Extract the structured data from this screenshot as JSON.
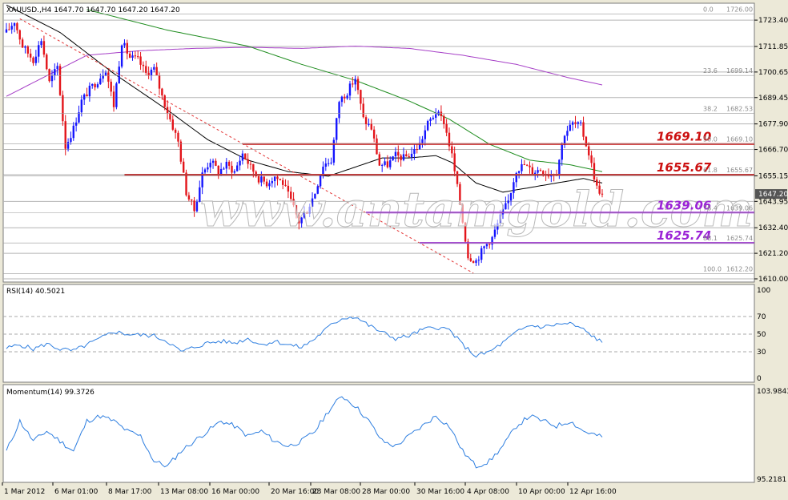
{
  "chart_data": {
    "type": "candlestick",
    "symbol_header": "XAUUSD.,H4  1647.70 1647.70 1647.20 1647.20",
    "watermark": "www.antamgold.com",
    "colors": {
      "bull": "#1515ff",
      "bear": "#e3141a",
      "ma_fast": "#000000",
      "ma_mid": "#1e8c1e",
      "ma_slow": "#a63fc7",
      "resistance": "#cc1111",
      "support": "#9b24d6",
      "trend": "#e33333",
      "indicator": "#2f7fe0",
      "grid": "#b4b4b4",
      "background": "#ece9d8"
    },
    "price_axis": {
      "min": 1610.0,
      "max": 1728.0,
      "ticks": [
        "1723.40",
        "1711.85",
        "1700.65",
        "1689.45",
        "1677.90",
        "1666.70",
        "1655.15",
        "1643.95",
        "1632.40",
        "1621.20",
        "1610.00"
      ],
      "current_price": "1647.20"
    },
    "time_axis": {
      "labels": [
        "1 Mar 2012",
        "6 Mar 01:00",
        "8 Mar 17:00",
        "13 Mar 08:00",
        "16 Mar 00:00",
        "20 Mar 16:00",
        "23 Mar 08:00",
        "28 Mar 00:00",
        "30 Mar 16:00",
        "4 Apr 08:00",
        "10 Apr 00:00",
        "12 Apr 16:00"
      ]
    },
    "fibonacci": [
      {
        "pct": "0.0",
        "price": "1726.00"
      },
      {
        "pct": "23.6",
        "price": "1699.14"
      },
      {
        "pct": "38.2",
        "price": "1682.53"
      },
      {
        "pct": "50.0",
        "price": "1669.10"
      },
      {
        "pct": "61.8",
        "price": "1655.67"
      },
      {
        "pct": "76.4",
        "price": "1639.06"
      },
      {
        "pct": "88.1",
        "price": "1625.74"
      },
      {
        "pct": "100.0",
        "price": "1612.20"
      }
    ],
    "levels": [
      {
        "label": "1669.10",
        "price": 1669.1,
        "kind": "resistance",
        "from_time": 88
      },
      {
        "label": "1655.67",
        "price": 1655.67,
        "kind": "resistance",
        "from_time": 44
      },
      {
        "label": "1639.06",
        "price": 1639.06,
        "kind": "support",
        "from_time": 134
      },
      {
        "label": "1625.74",
        "price": 1625.74,
        "kind": "support",
        "from_time": 154
      }
    ],
    "trendline": {
      "t0": 5,
      "p0": 1724.0,
      "t1": 174,
      "p1": 1612.5
    },
    "price_anchors": [
      [
        0,
        1718
      ],
      [
        3,
        1723
      ],
      [
        6,
        1712
      ],
      [
        10,
        1706
      ],
      [
        13,
        1715
      ],
      [
        16,
        1696
      ],
      [
        19,
        1703
      ],
      [
        22,
        1668
      ],
      [
        25,
        1676
      ],
      [
        28,
        1688
      ],
      [
        31,
        1693
      ],
      [
        34,
        1697
      ],
      [
        37,
        1702
      ],
      [
        40,
        1686
      ],
      [
        43,
        1714
      ],
      [
        46,
        1707
      ],
      [
        49,
        1706
      ],
      [
        52,
        1700
      ],
      [
        55,
        1702
      ],
      [
        58,
        1690
      ],
      [
        61,
        1680
      ],
      [
        64,
        1670
      ],
      [
        67,
        1648
      ],
      [
        70,
        1640
      ],
      [
        73,
        1656
      ],
      [
        76,
        1662
      ],
      [
        79,
        1657
      ],
      [
        82,
        1660
      ],
      [
        85,
        1657
      ],
      [
        88,
        1665
      ],
      [
        91,
        1659
      ],
      [
        94,
        1654
      ],
      [
        97,
        1652
      ],
      [
        100,
        1655
      ],
      [
        103,
        1652
      ],
      [
        106,
        1644
      ],
      [
        109,
        1635
      ],
      [
        112,
        1640
      ],
      [
        115,
        1648
      ],
      [
        118,
        1660
      ],
      [
        121,
        1662
      ],
      [
        124,
        1688
      ],
      [
        127,
        1692
      ],
      [
        130,
        1698
      ],
      [
        133,
        1680
      ],
      [
        136,
        1676
      ],
      [
        139,
        1660
      ],
      [
        142,
        1660
      ],
      [
        145,
        1664
      ],
      [
        148,
        1663
      ],
      [
        151,
        1665
      ],
      [
        154,
        1669
      ],
      [
        157,
        1678
      ],
      [
        160,
        1683
      ],
      [
        163,
        1679
      ],
      [
        166,
        1664
      ],
      [
        169,
        1643
      ],
      [
        172,
        1620
      ],
      [
        175,
        1618
      ],
      [
        178,
        1624
      ],
      [
        181,
        1628
      ],
      [
        184,
        1637
      ],
      [
        187,
        1644
      ],
      [
        190,
        1658
      ],
      [
        193,
        1660
      ],
      [
        196,
        1657
      ],
      [
        199,
        1658
      ],
      [
        202,
        1656
      ],
      [
        205,
        1657
      ],
      [
        208,
        1674
      ],
      [
        211,
        1678
      ],
      [
        214,
        1677
      ],
      [
        217,
        1665
      ],
      [
        220,
        1650
      ],
      [
        222,
        1647.2
      ]
    ],
    "ma_fast": [
      [
        0,
        1730
      ],
      [
        20,
        1718
      ],
      [
        40,
        1700
      ],
      [
        60,
        1684
      ],
      [
        75,
        1671
      ],
      [
        90,
        1662
      ],
      [
        105,
        1657
      ],
      [
        120,
        1655
      ],
      [
        130,
        1659
      ],
      [
        140,
        1663
      ],
      [
        150,
        1663
      ],
      [
        160,
        1664
      ],
      [
        166,
        1661
      ],
      [
        175,
        1652
      ],
      [
        185,
        1648
      ],
      [
        195,
        1650
      ],
      [
        205,
        1652
      ],
      [
        215,
        1654
      ],
      [
        222,
        1652
      ]
    ],
    "ma_mid": [
      [
        30,
        1728
      ],
      [
        60,
        1719
      ],
      [
        90,
        1712
      ],
      [
        110,
        1704
      ],
      [
        130,
        1697
      ],
      [
        150,
        1688
      ],
      [
        165,
        1680
      ],
      [
        180,
        1669
      ],
      [
        195,
        1662
      ],
      [
        210,
        1660
      ],
      [
        222,
        1657
      ]
    ],
    "ma_slow": [
      [
        0,
        1690
      ],
      [
        30,
        1708
      ],
      [
        50,
        1710
      ],
      [
        70,
        1711
      ],
      [
        90,
        1711.5
      ],
      [
        110,
        1711
      ],
      [
        130,
        1712
      ],
      [
        150,
        1711
      ],
      [
        170,
        1708
      ],
      [
        190,
        1704
      ],
      [
        210,
        1698
      ],
      [
        222,
        1695
      ]
    ],
    "rsi": {
      "label": "RSI(14) 40.5021",
      "levels": [
        "100",
        "70",
        "50",
        "30",
        "0"
      ],
      "min": 0,
      "max": 100,
      "anchors": [
        [
          0,
          34
        ],
        [
          5,
          38
        ],
        [
          10,
          33
        ],
        [
          15,
          39
        ],
        [
          20,
          33
        ],
        [
          25,
          31
        ],
        [
          30,
          38
        ],
        [
          35,
          45
        ],
        [
          40,
          53
        ],
        [
          45,
          50
        ],
        [
          50,
          49
        ],
        [
          55,
          48
        ],
        [
          60,
          42
        ],
        [
          65,
          30
        ],
        [
          70,
          35
        ],
        [
          75,
          40
        ],
        [
          80,
          42
        ],
        [
          85,
          40
        ],
        [
          90,
          45
        ],
        [
          95,
          38
        ],
        [
          100,
          42
        ],
        [
          105,
          38
        ],
        [
          110,
          35
        ],
        [
          115,
          45
        ],
        [
          120,
          58
        ],
        [
          125,
          68
        ],
        [
          130,
          70
        ],
        [
          135,
          60
        ],
        [
          140,
          52
        ],
        [
          145,
          45
        ],
        [
          150,
          48
        ],
        [
          155,
          55
        ],
        [
          160,
          58
        ],
        [
          165,
          55
        ],
        [
          170,
          38
        ],
        [
          175,
          25
        ],
        [
          180,
          30
        ],
        [
          185,
          40
        ],
        [
          190,
          52
        ],
        [
          195,
          60
        ],
        [
          200,
          58
        ],
        [
          205,
          61
        ],
        [
          210,
          62
        ],
        [
          215,
          55
        ],
        [
          222,
          40.5
        ]
      ]
    },
    "momentum": {
      "label": "Momentum(14) 99.3726",
      "ticks": [
        "103.9843",
        "95.2181"
      ],
      "min": 95.2181,
      "max": 103.9843,
      "anchors": [
        [
          0,
          98
        ],
        [
          5,
          101
        ],
        [
          10,
          99
        ],
        [
          15,
          100
        ],
        [
          20,
          99
        ],
        [
          25,
          98
        ],
        [
          30,
          101
        ],
        [
          35,
          101.5
        ],
        [
          40,
          101
        ],
        [
          45,
          100
        ],
        [
          50,
          99.5
        ],
        [
          55,
          97
        ],
        [
          60,
          96.5
        ],
        [
          65,
          98
        ],
        [
          70,
          99
        ],
        [
          75,
          100
        ],
        [
          80,
          101
        ],
        [
          85,
          100.5
        ],
        [
          90,
          99.5
        ],
        [
          95,
          100
        ],
        [
          100,
          99
        ],
        [
          105,
          98.5
        ],
        [
          110,
          99
        ],
        [
          115,
          100
        ],
        [
          120,
          102
        ],
        [
          125,
          103.5
        ],
        [
          130,
          102.5
        ],
        [
          135,
          101
        ],
        [
          140,
          99
        ],
        [
          145,
          98.5
        ],
        [
          150,
          99.5
        ],
        [
          155,
          100.5
        ],
        [
          160,
          101.5
        ],
        [
          165,
          100.5
        ],
        [
          170,
          98
        ],
        [
          175,
          96.5
        ],
        [
          180,
          97
        ],
        [
          185,
          98.5
        ],
        [
          190,
          100.5
        ],
        [
          195,
          101.5
        ],
        [
          200,
          101
        ],
        [
          205,
          100.5
        ],
        [
          210,
          101
        ],
        [
          215,
          100
        ],
        [
          222,
          99.4
        ]
      ]
    }
  }
}
